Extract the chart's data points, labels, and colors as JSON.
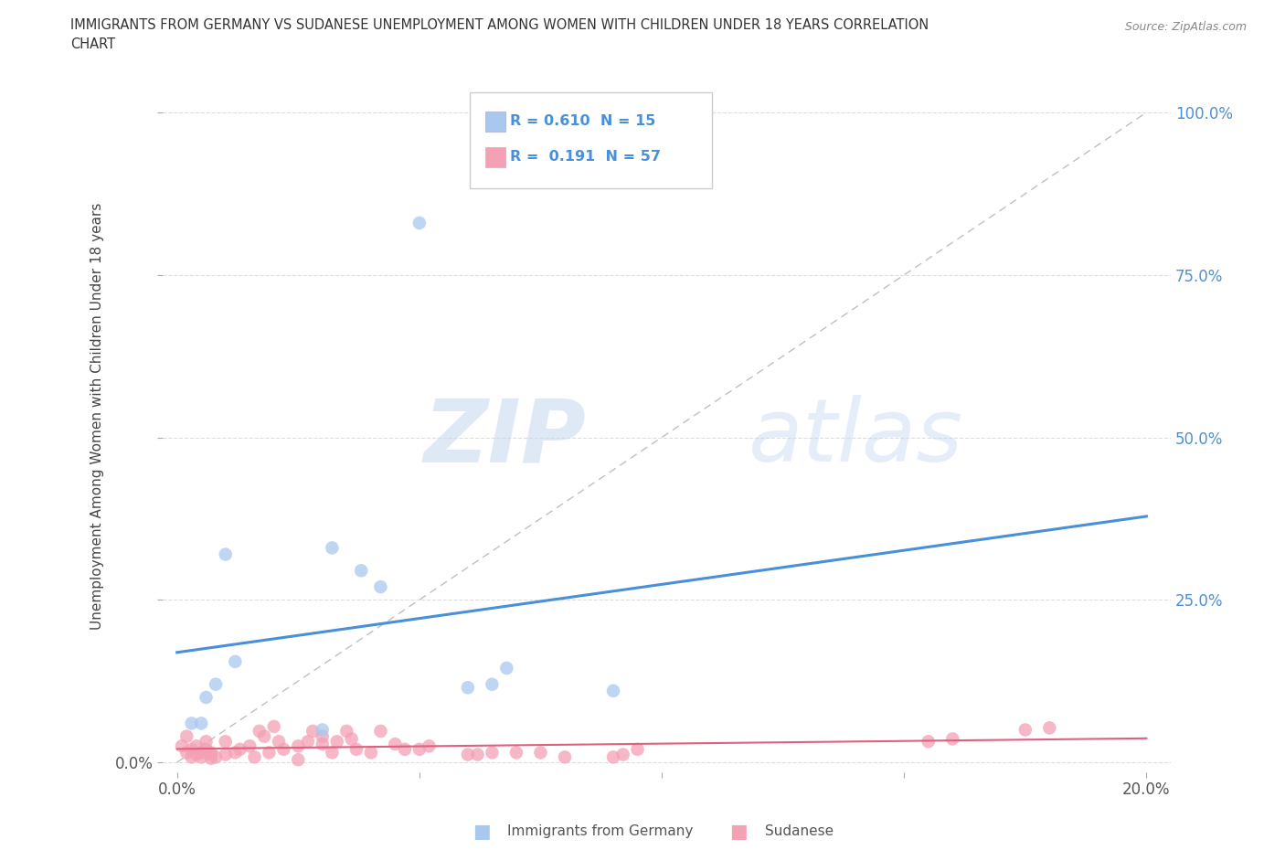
{
  "title_line1": "IMMIGRANTS FROM GERMANY VS SUDANESE UNEMPLOYMENT AMONG WOMEN WITH CHILDREN UNDER 18 YEARS CORRELATION",
  "title_line2": "CHART",
  "source": "Source: ZipAtlas.com",
  "ylabel": "Unemployment Among Women with Children Under 18 years",
  "legend_blue_R": "0.610",
  "legend_blue_N": "15",
  "legend_pink_R": "0.191",
  "legend_pink_N": "57",
  "legend_label_blue": "Immigrants from Germany",
  "legend_label_pink": "Sudanese",
  "watermark_ZIP": "ZIP",
  "watermark_atlas": "atlas",
  "blue_color": "#a8c8f0",
  "pink_color": "#f4a0b5",
  "blue_line_color": "#4a90d9",
  "pink_line_color": "#e06080",
  "diag_line_color": "#c0c0c0",
  "background_color": "#ffffff",
  "grid_color": "#dddddd",
  "blue_scatter_x": [
    0.03,
    0.032,
    0.038,
    0.042,
    0.01,
    0.012,
    0.008,
    0.006,
    0.005,
    0.003,
    0.068,
    0.065,
    0.06,
    0.05,
    0.09
  ],
  "blue_scatter_y": [
    0.05,
    0.33,
    0.295,
    0.27,
    0.32,
    0.155,
    0.12,
    0.1,
    0.06,
    0.06,
    0.145,
    0.12,
    0.115,
    0.83,
    0.11
  ],
  "pink_scatter_x": [
    0.001,
    0.002,
    0.002,
    0.003,
    0.003,
    0.004,
    0.004,
    0.005,
    0.005,
    0.006,
    0.006,
    0.007,
    0.007,
    0.008,
    0.01,
    0.01,
    0.012,
    0.013,
    0.015,
    0.016,
    0.017,
    0.018,
    0.019,
    0.02,
    0.021,
    0.022,
    0.025,
    0.027,
    0.028,
    0.03,
    0.03,
    0.032,
    0.033,
    0.035,
    0.036,
    0.037,
    0.04,
    0.042,
    0.045,
    0.047,
    0.05,
    0.052,
    0.06,
    0.062,
    0.065,
    0.07,
    0.075,
    0.08,
    0.09,
    0.092,
    0.095,
    0.155,
    0.16,
    0.175,
    0.18,
    0.007,
    0.025
  ],
  "pink_scatter_y": [
    0.025,
    0.015,
    0.04,
    0.008,
    0.02,
    0.012,
    0.025,
    0.008,
    0.015,
    0.02,
    0.032,
    0.012,
    0.015,
    0.008,
    0.012,
    0.032,
    0.015,
    0.02,
    0.025,
    0.008,
    0.048,
    0.04,
    0.015,
    0.055,
    0.032,
    0.02,
    0.025,
    0.032,
    0.048,
    0.028,
    0.04,
    0.015,
    0.032,
    0.048,
    0.036,
    0.02,
    0.015,
    0.048,
    0.028,
    0.02,
    0.02,
    0.025,
    0.012,
    0.012,
    0.015,
    0.015,
    0.015,
    0.008,
    0.008,
    0.012,
    0.02,
    0.032,
    0.036,
    0.05,
    0.053,
    0.006,
    0.004
  ],
  "xlim": [
    -0.003,
    0.205
  ],
  "ylim": [
    -0.015,
    1.08
  ],
  "x_ticks": [
    0.0,
    0.05,
    0.1,
    0.15,
    0.2
  ],
  "y_ticks": [
    0.0,
    0.25,
    0.5,
    0.75,
    1.0
  ]
}
